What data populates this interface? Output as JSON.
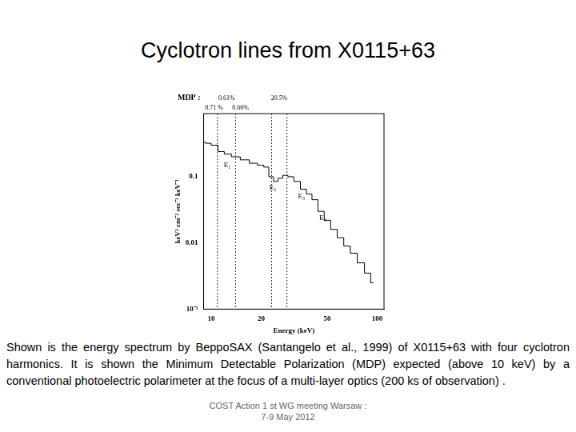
{
  "chart_data": {
    "type": "line",
    "title": "Cyclotron lines from X0115+63",
    "x_label": "Energy (keV)",
    "y_label": "keV² cm⁻² sec⁻¹ keV⁻¹",
    "x": [
      9.0,
      9.5,
      10.5,
      11.5,
      12.5,
      14,
      16,
      18,
      20,
      21.5,
      23,
      24.5,
      26,
      28,
      30,
      33,
      36,
      39,
      42,
      46,
      50,
      55,
      60,
      66,
      72,
      80,
      88,
      95
    ],
    "values": [
      0.33,
      0.32,
      0.3,
      0.24,
      0.22,
      0.2,
      0.18,
      0.16,
      0.15,
      0.14,
      0.1,
      0.085,
      0.095,
      0.105,
      0.1,
      0.085,
      0.065,
      0.055,
      0.045,
      0.03,
      0.022,
      0.016,
      0.012,
      0.009,
      0.007,
      0.005,
      0.0035,
      0.0025
    ],
    "color": "#000000",
    "line_style": "steps",
    "log": true,
    "grid": false,
    "xlim": [
      9,
      110
    ],
    "xticks": [
      10,
      20,
      50,
      100
    ],
    "ylim": [
      0.001,
      0.9
    ],
    "yticks": [
      {
        "value": 0.001,
        "label": "10⁻³"
      },
      0.01,
      0.1
    ],
    "vlines": [
      10.9,
      14.0,
      23.1,
      28.6
    ],
    "annotations": [
      {
        "text": "E₁",
        "x": 12.5,
        "y": 0.15
      },
      {
        "text": "E₂",
        "x": 23.5,
        "y": 0.068
      },
      {
        "text": "E₃",
        "x": 35,
        "y": 0.05
      },
      {
        "text": "E₄",
        "x": 47,
        "y": 0.024
      }
    ],
    "mdp": {
      "label": "MDP :",
      "values": [
        {
          "text": "0.71 %",
          "x": 10.4
        },
        {
          "text": "0.61%",
          "x": 12.4
        },
        {
          "text": "0.66%",
          "x": 15.0
        },
        {
          "text": "20.5%",
          "x": 25.7
        }
      ]
    }
  },
  "caption": "Shown is the energy spectrum by BeppoSAX (Santangelo et al., 1999) of X0115+63 with four cyclotron harmonics. It is shown the Minimum Detectable Polarization (MDP) expected (above 10 keV) by a conventional photoelectric polarimeter at the focus of a multi-layer optics (200 ks of observation) .",
  "footer": [
    "COST Action 1 st WG meeting Warsaw :",
    "7-9 May 2012"
  ]
}
